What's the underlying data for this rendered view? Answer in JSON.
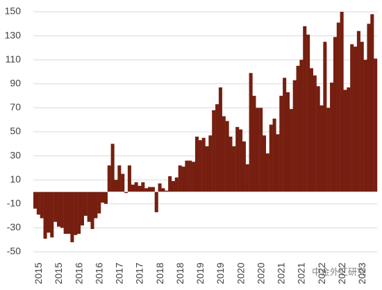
{
  "chart_data": {
    "type": "bar",
    "categories": [
      "2015",
      null,
      null,
      null,
      null,
      null,
      "2015",
      null,
      null,
      null,
      null,
      null,
      "2016",
      null,
      null,
      null,
      null,
      null,
      "2016",
      null,
      null,
      null,
      null,
      null,
      "2017",
      null,
      null,
      null,
      null,
      null,
      "2017",
      null,
      null,
      null,
      null,
      null,
      "2018",
      null,
      null,
      null,
      null,
      null,
      "2018",
      null,
      null,
      null,
      null,
      null,
      "2019",
      null,
      null,
      null,
      null,
      null,
      "2019",
      null,
      null,
      null,
      null,
      null,
      "2020",
      null,
      null,
      null,
      null,
      null,
      "2020",
      null,
      null,
      null,
      null,
      null,
      "2021",
      null,
      null,
      null,
      null,
      null,
      "2021",
      null,
      null,
      null,
      null,
      null,
      "2022",
      null,
      null,
      null,
      null,
      null,
      "2022",
      null,
      null,
      null,
      null,
      null,
      "2023",
      null,
      null,
      null,
      null,
      null
    ],
    "values": [
      -14,
      -19,
      -22,
      -39,
      -34,
      -38,
      -25,
      -29,
      -30,
      -35,
      -35,
      -42,
      -36,
      -35,
      -28,
      -20,
      -25,
      -31,
      -22,
      -18,
      -9,
      -10,
      22,
      40,
      10,
      22,
      15,
      -1,
      22,
      6,
      8,
      5,
      8,
      3,
      4,
      4,
      -17,
      7,
      3,
      1,
      13,
      9,
      12,
      22,
      21,
      26,
      26,
      25,
      46,
      43,
      45,
      38,
      47,
      68,
      73,
      87,
      63,
      59,
      46,
      38,
      54,
      52,
      42,
      23,
      99,
      80,
      70,
      70,
      47,
      32,
      56,
      61,
      48,
      80,
      95,
      83,
      69,
      93,
      105,
      110,
      138,
      131,
      103,
      97,
      88,
      72,
      125,
      70,
      91,
      129,
      141,
      150,
      85,
      87,
      123,
      121,
      134,
      125,
      110,
      140,
      148,
      111
    ],
    "color": "#761f10",
    "ylim": [
      -50,
      150
    ],
    "yticks": [
      -50,
      -30,
      -10,
      10,
      30,
      50,
      70,
      90,
      110,
      130,
      150
    ],
    "grid": true,
    "watermark": "中金外汇研究"
  }
}
